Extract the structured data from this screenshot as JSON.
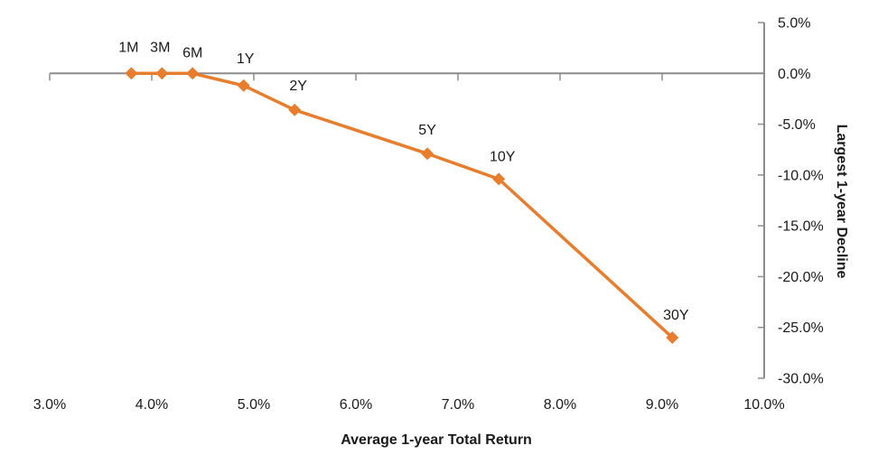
{
  "chart_data": {
    "type": "line",
    "title": "",
    "xlabel": "Average 1-year Total Return",
    "ylabel": "Largest 1-year Decline",
    "grid": false,
    "legend": false,
    "x_axis": {
      "min": 3,
      "max": 10,
      "tick_labels": [
        "3.0%",
        "4.0%",
        "5.0%",
        "6.0%",
        "7.0%",
        "8.0%",
        "9.0%",
        "10.0%"
      ],
      "side": "bottom"
    },
    "y_axis": {
      "min": -30,
      "max": 5,
      "tick_labels": [
        "5.0%",
        "0.0%",
        "-5.0%",
        "-10.0%",
        "-15.0%",
        "-20.0%",
        "-25.0%",
        "-30.0%"
      ],
      "side": "right"
    },
    "series": [
      {
        "marker": "diamond",
        "color": "#E87D2E",
        "points": [
          {
            "label": "1M",
            "x": 3.8,
            "y": 0.0
          },
          {
            "label": "3M",
            "x": 4.1,
            "y": 0.0
          },
          {
            "label": "6M",
            "x": 4.4,
            "y": 0.0
          },
          {
            "label": "1Y",
            "x": 4.9,
            "y": -1.2
          },
          {
            "label": "2Y",
            "x": 5.4,
            "y": -3.6
          },
          {
            "label": "5Y",
            "x": 6.7,
            "y": -7.9
          },
          {
            "label": "10Y",
            "x": 7.4,
            "y": -10.4
          },
          {
            "label": "30Y",
            "x": 9.1,
            "y": -26.0
          }
        ]
      }
    ],
    "colors": {
      "line": "#E87D2E",
      "axis": "#8C8C8C",
      "text": "#1a1a1a",
      "background": "#ffffff"
    }
  }
}
